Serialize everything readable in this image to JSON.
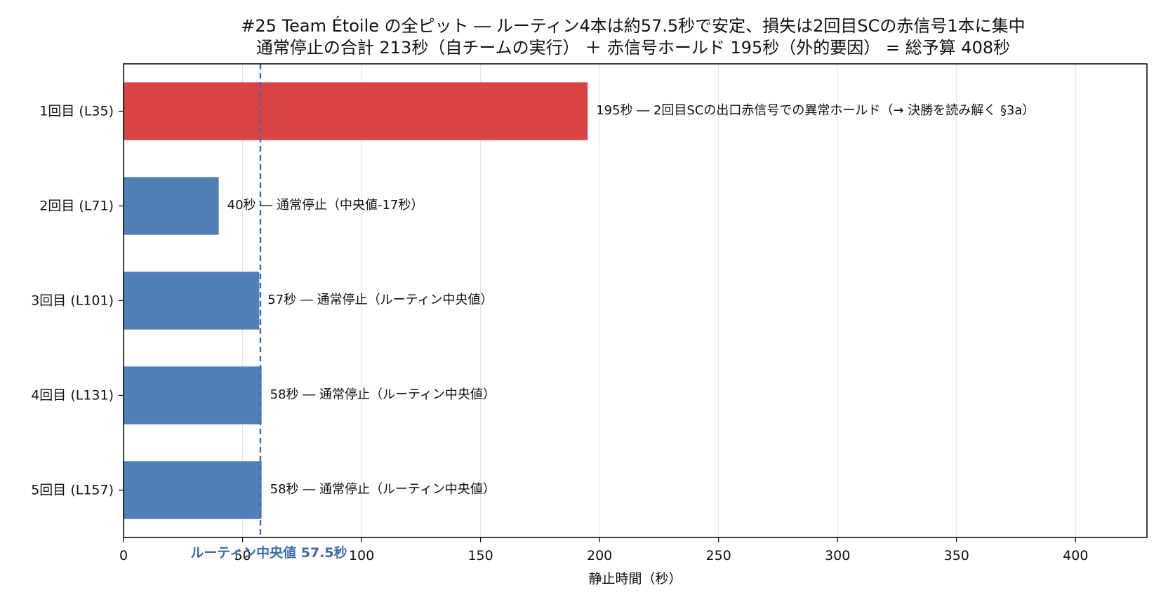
{
  "chart_data": {
    "type": "bar",
    "orientation": "horizontal",
    "title": "#25 Team Étoile の全ピット ― ルーティン4本は約57.5秒で安定、損失は2回目SCの赤信号1本に集中",
    "subtitle": "通常停止の合計 213秒（自チームの実行） ＋ 赤信号ホールド 195秒（外的要因） = 総予算 408秒",
    "xlabel": "静止時間（秒）",
    "ylabel": "",
    "xlim": [
      0,
      430
    ],
    "xticks": [
      "0",
      "50",
      "100",
      "150",
      "200",
      "250",
      "300",
      "350",
      "400"
    ],
    "grid": "x",
    "categories": [
      "1回目 (L35)",
      "2回目 (L71)",
      "3回目 (L101)",
      "4回目 (L131)",
      "5回目 (L157)"
    ],
    "values": [
      195,
      40,
      57,
      58,
      58
    ],
    "bar_colors": [
      "#d94343",
      "#5180b8",
      "#5180b8",
      "#5180b8",
      "#5180b8"
    ],
    "bar_labels": [
      "195秒 ― 2回目SCの出口赤信号での異常ホールド（→ 決勝を読み解く §3a）",
      "40秒 ― 通常停止（中央値-17秒）",
      "57秒 ― 通常停止（ルーティン中央値）",
      "58秒 ― 通常停止（ルーティン中央値）",
      "58秒 ― 通常停止（ルーティン中央値）"
    ],
    "reference_line": {
      "value": 57.5,
      "label": "ルーティン中央値 57.5秒",
      "color": "#3a6cb0",
      "style": "dashed"
    }
  }
}
